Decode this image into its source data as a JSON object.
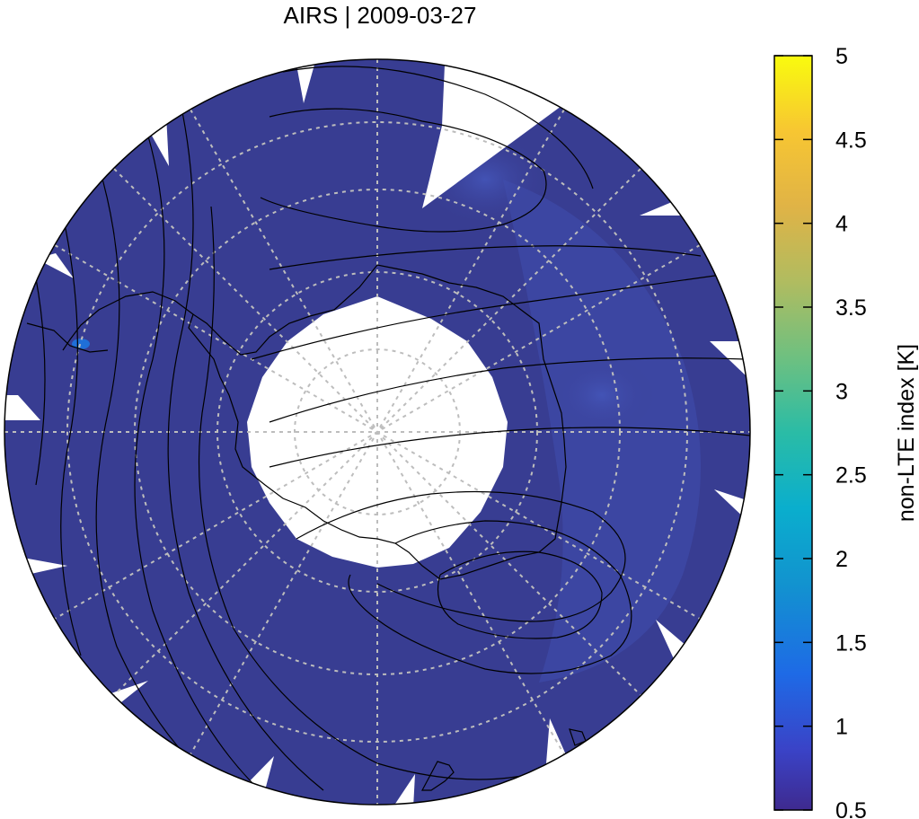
{
  "title": "AIRS | 2009-03-27",
  "colorbar": {
    "label": "non-LTE index [K]",
    "ticks": [
      "5",
      "4.5",
      "4",
      "3.5",
      "3",
      "2.5",
      "2",
      "1.5",
      "1",
      "0.5"
    ],
    "min": 0.5,
    "max": 5,
    "colormap": [
      "#3e2a8f",
      "#3a43c7",
      "#1e6ae6",
      "#1293cf",
      "#0aaecd",
      "#2abca6",
      "#6ec080",
      "#b0bc60",
      "#e0b346",
      "#f7c632",
      "#f9fb0e"
    ]
  },
  "map": {
    "projection": "south-polar-stereographic",
    "background_value_color": "#383d92",
    "enhanced_region_color": "#3e51b0",
    "hotspot_color": "#1f6fd8",
    "graticule_color": "#bdbdbd"
  }
}
